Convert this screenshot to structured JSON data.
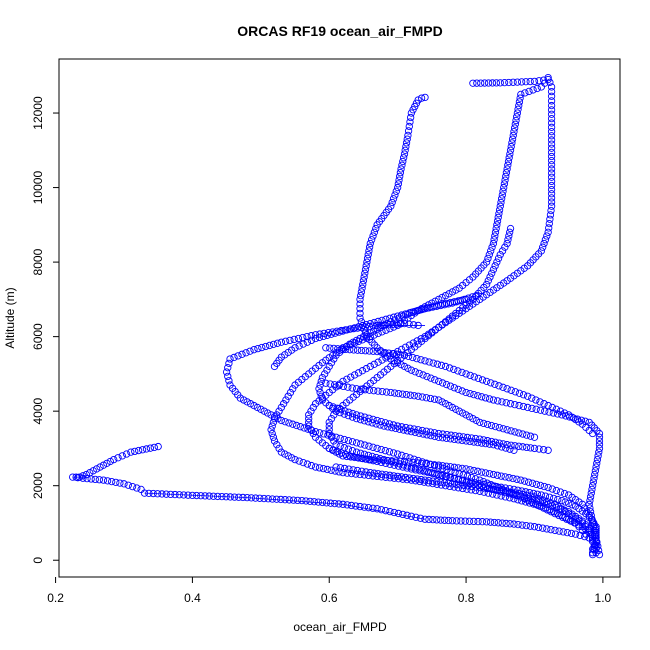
{
  "chart_data": {
    "type": "scatter",
    "title": "ORCAS RF19 ocean_air_FMPD",
    "xlabel": "ocean_air_FMPD",
    "ylabel": "Altitude (m)",
    "xlim": [
      0.205,
      1.025
    ],
    "ylim": [
      -450,
      13450
    ],
    "x_ticks": [
      0.2,
      0.4,
      0.6,
      0.8,
      1.0
    ],
    "x_tick_labels": [
      "0.2",
      "0.4",
      "0.6",
      "0.8",
      "1.0"
    ],
    "y_ticks": [
      0,
      2000,
      4000,
      6000,
      8000,
      10000,
      12000
    ],
    "y_tick_labels": [
      "0",
      "2000",
      "4000",
      "6000",
      "8000",
      "10000",
      "12000"
    ],
    "grid": false,
    "point_color": "#0000ff",
    "series": [
      {
        "points": [
          [
            0.995,
            150
          ],
          [
            0.99,
            600
          ],
          [
            0.97,
            900
          ],
          [
            0.93,
            1250
          ],
          [
            0.88,
            1700
          ],
          [
            0.82,
            2150
          ],
          [
            0.76,
            2500
          ],
          [
            0.7,
            2850
          ],
          [
            0.64,
            3150
          ],
          [
            0.58,
            3450
          ],
          [
            0.53,
            3750
          ],
          [
            0.5,
            4050
          ],
          [
            0.47,
            4350
          ],
          [
            0.455,
            4700
          ],
          [
            0.45,
            5050
          ],
          [
            0.455,
            5400
          ],
          [
            0.49,
            5650
          ],
          [
            0.53,
            5850
          ],
          [
            0.58,
            6050
          ],
          [
            0.63,
            6200
          ],
          [
            0.67,
            6300
          ],
          [
            0.71,
            6350
          ],
          [
            0.73,
            6300
          ]
        ]
      },
      {
        "points": [
          [
            0.74,
            12420
          ],
          [
            0.735,
            12400
          ],
          [
            0.73,
            12350
          ],
          [
            0.72,
            12000
          ],
          [
            0.715,
            11400
          ],
          [
            0.71,
            10900
          ],
          [
            0.705,
            10500
          ],
          [
            0.7,
            10000
          ],
          [
            0.69,
            9500
          ],
          [
            0.67,
            9000
          ],
          [
            0.66,
            8500
          ],
          [
            0.655,
            8000
          ],
          [
            0.65,
            7500
          ],
          [
            0.645,
            7000
          ],
          [
            0.645,
            6500
          ],
          [
            0.655,
            6000
          ],
          [
            0.67,
            5700
          ],
          [
            0.69,
            5400
          ],
          [
            0.72,
            5100
          ],
          [
            0.76,
            4800
          ],
          [
            0.8,
            4500
          ],
          [
            0.84,
            4300
          ],
          [
            0.89,
            4100
          ],
          [
            0.94,
            3900
          ],
          [
            0.98,
            3700
          ],
          [
            0.995,
            3400
          ],
          [
            0.995,
            3000
          ],
          [
            0.99,
            2500
          ],
          [
            0.985,
            2000
          ],
          [
            0.98,
            1500
          ],
          [
            0.985,
            1000
          ],
          [
            0.99,
            500
          ],
          [
            0.985,
            200
          ]
        ]
      },
      {
        "points": [
          [
            0.6,
            3000
          ],
          [
            0.62,
            2800
          ],
          [
            0.66,
            2700
          ],
          [
            0.71,
            2650
          ],
          [
            0.76,
            2550
          ],
          [
            0.8,
            2450
          ],
          [
            0.84,
            2300
          ],
          [
            0.88,
            2150
          ],
          [
            0.92,
            1950
          ],
          [
            0.95,
            1750
          ],
          [
            0.97,
            1500
          ],
          [
            0.98,
            1200
          ],
          [
            0.99,
            900
          ],
          [
            0.99,
            500
          ],
          [
            0.985,
            300
          ]
        ]
      },
      {
        "points": [
          [
            0.35,
            3050
          ],
          [
            0.31,
            2900
          ],
          [
            0.285,
            2700
          ],
          [
            0.265,
            2500
          ],
          [
            0.245,
            2300
          ],
          [
            0.235,
            2230
          ],
          [
            0.225,
            2230
          ],
          [
            0.24,
            2200
          ],
          [
            0.27,
            2150
          ],
          [
            0.3,
            2050
          ],
          [
            0.325,
            1900
          ]
        ]
      },
      {
        "points": [
          [
            0.33,
            1800
          ],
          [
            0.4,
            1740
          ],
          [
            0.48,
            1680
          ],
          [
            0.56,
            1600
          ],
          [
            0.62,
            1500
          ],
          [
            0.67,
            1380
          ],
          [
            0.72,
            1180
          ],
          [
            0.74,
            1100
          ],
          [
            0.78,
            1060
          ],
          [
            0.83,
            1030
          ],
          [
            0.87,
            970
          ],
          [
            0.9,
            900
          ],
          [
            0.93,
            800
          ],
          [
            0.96,
            700
          ],
          [
            0.98,
            600
          ],
          [
            0.99,
            500
          ]
        ]
      },
      {
        "points": [
          [
            0.81,
            12800
          ],
          [
            0.85,
            12810
          ],
          [
            0.9,
            12850
          ],
          [
            0.92,
            12900
          ],
          [
            0.91,
            12700
          ],
          [
            0.88,
            12500
          ],
          [
            0.875,
            12000
          ],
          [
            0.87,
            11500
          ],
          [
            0.865,
            11000
          ],
          [
            0.86,
            10500
          ],
          [
            0.855,
            10000
          ],
          [
            0.85,
            9500
          ],
          [
            0.845,
            9000
          ],
          [
            0.84,
            8500
          ],
          [
            0.83,
            8000
          ],
          [
            0.81,
            7600
          ],
          [
            0.79,
            7300
          ],
          [
            0.76,
            7000
          ],
          [
            0.73,
            6700
          ],
          [
            0.7,
            6300
          ],
          [
            0.66,
            6000
          ],
          [
            0.62,
            5700
          ],
          [
            0.59,
            5300
          ],
          [
            0.57,
            5000
          ],
          [
            0.55,
            4700
          ],
          [
            0.54,
            4400
          ],
          [
            0.53,
            4100
          ],
          [
            0.52,
            3800
          ],
          [
            0.515,
            3500
          ],
          [
            0.52,
            3200
          ],
          [
            0.53,
            2900
          ],
          [
            0.55,
            2700
          ],
          [
            0.58,
            2500
          ],
          [
            0.62,
            2350
          ],
          [
            0.67,
            2250
          ],
          [
            0.72,
            2150
          ],
          [
            0.77,
            2000
          ],
          [
            0.82,
            1850
          ],
          [
            0.87,
            1650
          ],
          [
            0.91,
            1450
          ],
          [
            0.94,
            1200
          ],
          [
            0.96,
            1000
          ],
          [
            0.97,
            800
          ],
          [
            0.98,
            600
          ],
          [
            0.99,
            400
          ],
          [
            0.99,
            200
          ]
        ]
      },
      {
        "points": [
          [
            0.92,
            12950
          ],
          [
            0.925,
            12700
          ],
          [
            0.925,
            12200
          ],
          [
            0.925,
            11500
          ],
          [
            0.925,
            10500
          ],
          [
            0.925,
            9500
          ],
          [
            0.92,
            8800
          ],
          [
            0.91,
            8300
          ],
          [
            0.89,
            7900
          ],
          [
            0.86,
            7500
          ],
          [
            0.82,
            7000
          ],
          [
            0.78,
            6500
          ],
          [
            0.74,
            6000
          ],
          [
            0.7,
            5600
          ],
          [
            0.66,
            5200
          ],
          [
            0.62,
            4800
          ],
          [
            0.6,
            4500
          ],
          [
            0.58,
            4200
          ],
          [
            0.57,
            3900
          ],
          [
            0.57,
            3600
          ],
          [
            0.58,
            3300
          ],
          [
            0.6,
            3000
          ],
          [
            0.63,
            2800
          ],
          [
            0.67,
            2650
          ],
          [
            0.72,
            2450
          ],
          [
            0.77,
            2250
          ],
          [
            0.82,
            2050
          ],
          [
            0.87,
            1900
          ],
          [
            0.91,
            1750
          ],
          [
            0.94,
            1600
          ],
          [
            0.96,
            1450
          ],
          [
            0.975,
            1250
          ],
          [
            0.985,
            1050
          ],
          [
            0.99,
            850
          ],
          [
            0.99,
            650
          ],
          [
            0.99,
            400
          ],
          [
            0.985,
            150
          ]
        ]
      },
      {
        "points": [
          [
            0.6,
            4150
          ],
          [
            0.64,
            3900
          ],
          [
            0.7,
            3600
          ],
          [
            0.76,
            3400
          ],
          [
            0.82,
            3250
          ],
          [
            0.86,
            3100
          ],
          [
            0.9,
            3000
          ],
          [
            0.92,
            2950
          ]
        ]
      },
      {
        "points": [
          [
            0.595,
            4750
          ],
          [
            0.64,
            4600
          ],
          [
            0.69,
            4500
          ],
          [
            0.73,
            4400
          ],
          [
            0.76,
            4300
          ],
          [
            0.78,
            4100
          ],
          [
            0.8,
            3900
          ],
          [
            0.82,
            3700
          ],
          [
            0.86,
            3500
          ],
          [
            0.9,
            3300
          ]
        ]
      },
      {
        "points": [
          [
            0.61,
            2500
          ],
          [
            0.66,
            2350
          ],
          [
            0.7,
            2250
          ],
          [
            0.74,
            2150
          ],
          [
            0.78,
            2050
          ],
          [
            0.82,
            1950
          ],
          [
            0.86,
            1850
          ],
          [
            0.9,
            1700
          ],
          [
            0.93,
            1500
          ],
          [
            0.95,
            1250
          ],
          [
            0.97,
            1000
          ],
          [
            0.98,
            800
          ],
          [
            0.985,
            600
          ]
        ]
      },
      {
        "points": [
          [
            0.8,
            7000
          ],
          [
            0.76,
            6850
          ],
          [
            0.72,
            6650
          ],
          [
            0.69,
            6400
          ],
          [
            0.66,
            6100
          ],
          [
            0.63,
            5800
          ],
          [
            0.61,
            5500
          ],
          [
            0.6,
            5200
          ],
          [
            0.59,
            4900
          ],
          [
            0.585,
            4600
          ],
          [
            0.59,
            4300
          ],
          [
            0.61,
            4000
          ],
          [
            0.64,
            3800
          ],
          [
            0.68,
            3600
          ],
          [
            0.72,
            3450
          ],
          [
            0.76,
            3300
          ],
          [
            0.8,
            3200
          ],
          [
            0.84,
            3100
          ],
          [
            0.87,
            2950
          ]
        ]
      },
      {
        "points": [
          [
            0.865,
            8900
          ],
          [
            0.86,
            8500
          ],
          [
            0.85,
            8200
          ],
          [
            0.84,
            7800
          ],
          [
            0.83,
            7400
          ],
          [
            0.81,
            7000
          ],
          [
            0.79,
            6700
          ],
          [
            0.77,
            6400
          ],
          [
            0.75,
            6100
          ],
          [
            0.73,
            5800
          ],
          [
            0.71,
            5500
          ],
          [
            0.69,
            5200
          ],
          [
            0.67,
            4900
          ],
          [
            0.65,
            4600
          ],
          [
            0.63,
            4300
          ],
          [
            0.61,
            4000
          ],
          [
            0.6,
            3700
          ],
          [
            0.6,
            3400
          ],
          [
            0.61,
            3100
          ],
          [
            0.64,
            2900
          ],
          [
            0.68,
            2700
          ],
          [
            0.72,
            2500
          ],
          [
            0.76,
            2300
          ],
          [
            0.8,
            2100
          ],
          [
            0.84,
            1900
          ],
          [
            0.88,
            1700
          ],
          [
            0.92,
            1500
          ],
          [
            0.95,
            1300
          ],
          [
            0.97,
            1050
          ],
          [
            0.98,
            850
          ]
        ]
      },
      {
        "points": [
          [
            0.595,
            5700
          ],
          [
            0.63,
            5650
          ],
          [
            0.67,
            5600
          ],
          [
            0.71,
            5500
          ],
          [
            0.74,
            5350
          ],
          [
            0.77,
            5200
          ],
          [
            0.8,
            5000
          ],
          [
            0.83,
            4800
          ],
          [
            0.86,
            4600
          ],
          [
            0.89,
            4400
          ],
          [
            0.92,
            4150
          ],
          [
            0.95,
            3900
          ],
          [
            0.97,
            3650
          ],
          [
            0.985,
            3400
          ]
        ]
      },
      {
        "points": [
          [
            0.815,
            7100
          ],
          [
            0.78,
            6900
          ],
          [
            0.74,
            6750
          ],
          [
            0.7,
            6550
          ],
          [
            0.66,
            6350
          ],
          [
            0.62,
            6150
          ],
          [
            0.58,
            5950
          ],
          [
            0.55,
            5700
          ],
          [
            0.53,
            5450
          ],
          [
            0.52,
            5200
          ]
        ]
      }
    ],
    "lines": [
      {
        "points": [
          [
            0.33,
            1800
          ],
          [
            0.48,
            1680
          ],
          [
            0.62,
            1500
          ],
          [
            0.74,
            1100
          ]
        ]
      },
      {
        "points": [
          [
            0.67,
            6300
          ],
          [
            0.74,
            6300
          ]
        ]
      },
      {
        "points": [
          [
            0.225,
            2230
          ],
          [
            0.245,
            2230
          ]
        ]
      }
    ]
  }
}
